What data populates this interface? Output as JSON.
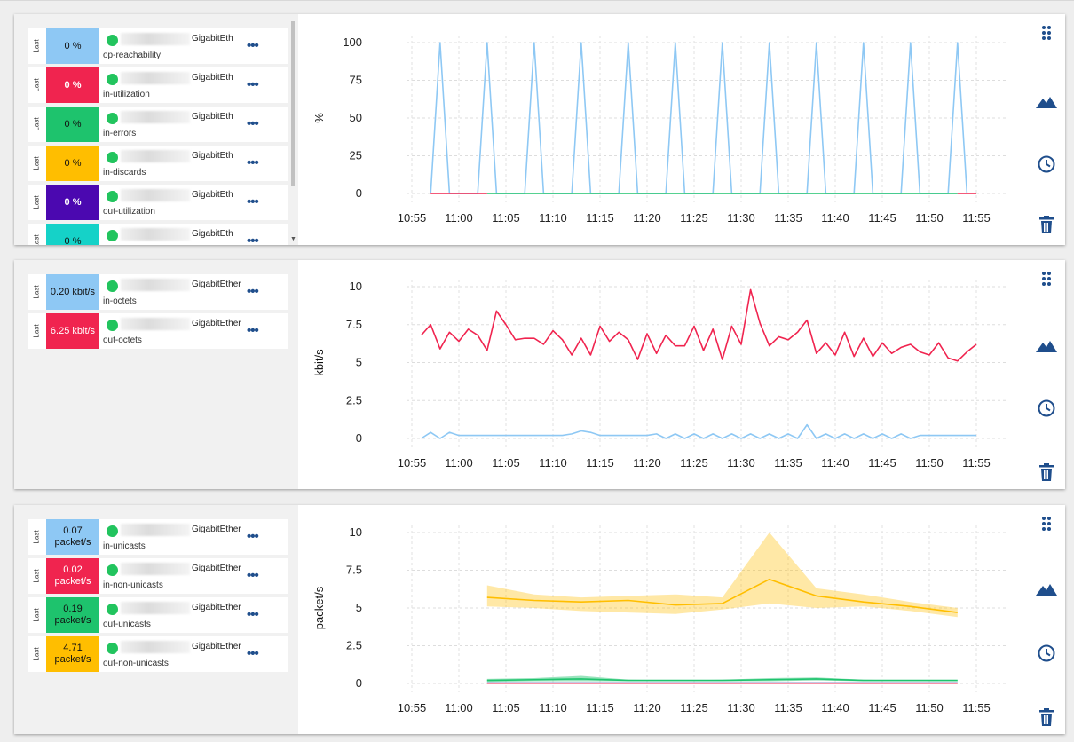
{
  "colors": {
    "blue": "#8ec8f4",
    "red": "#f0244f",
    "green": "#1ec36d",
    "yellow": "#ffbe00",
    "purple": "#4b08b0",
    "cyan": "#15d2c8",
    "icon": "#1f4e8c"
  },
  "panels": [
    {
      "last_label": "Last",
      "items": [
        {
          "value": "0 %",
          "color": "blue",
          "interface": "GigabitEth",
          "metric": "op-reachability"
        },
        {
          "value": "0 %",
          "color": "red",
          "interface": "GigabitEth",
          "metric": "in-utilization"
        },
        {
          "value": "0 %",
          "color": "green",
          "interface": "GigabitEth",
          "metric": "in-errors"
        },
        {
          "value": "0 %",
          "color": "yellow",
          "interface": "GigabitEth",
          "metric": "in-discards"
        },
        {
          "value": "0 %",
          "color": "purple",
          "interface": "GigabitEth",
          "metric": "out-utilization"
        },
        {
          "value": "0 %",
          "color": "cyan",
          "interface": "GigabitEth",
          "metric": ""
        }
      ],
      "chart_data": {
        "type": "line",
        "ylabel": "%",
        "ylim": [
          0,
          100
        ],
        "yticks": [
          "100",
          "75",
          "50",
          "25",
          "0"
        ],
        "xticks": [
          "10:55",
          "11:00",
          "11:05",
          "11:10",
          "11:15",
          "11:20",
          "11:25",
          "11:30",
          "11:35",
          "11:40",
          "11:45",
          "11:50",
          "11:55"
        ],
        "grid": true,
        "series": [
          {
            "color": "blue",
            "x": [
              "10:57",
              "10:58",
              "10:59",
              "11:02",
              "11:03",
              "11:04",
              "11:07",
              "11:08",
              "11:09",
              "11:12",
              "11:13",
              "11:14",
              "11:17",
              "11:18",
              "11:19",
              "11:22",
              "11:23",
              "11:24",
              "11:27",
              "11:28",
              "11:29",
              "11:32",
              "11:33",
              "11:34",
              "11:37",
              "11:38",
              "11:39",
              "11:42",
              "11:43",
              "11:44",
              "11:47",
              "11:48",
              "11:49",
              "11:52",
              "11:53",
              "11:54"
            ],
            "values": [
              0,
              100,
              0,
              0,
              100,
              0,
              0,
              100,
              0,
              0,
              100,
              0,
              0,
              100,
              0,
              0,
              100,
              0,
              0,
              100,
              0,
              0,
              100,
              0,
              0,
              100,
              0,
              0,
              100,
              0,
              0,
              100,
              0,
              0,
              100,
              0
            ]
          },
          {
            "color": "green",
            "x": [
              "11:03",
              "11:53"
            ],
            "values": [
              0,
              0
            ]
          },
          {
            "color": "red",
            "x": [
              "10:57",
              "11:03"
            ],
            "values": [
              0,
              0
            ]
          },
          {
            "color": "red",
            "x": [
              "11:53",
              "11:55"
            ],
            "values": [
              0,
              0
            ]
          }
        ]
      }
    },
    {
      "last_label": "Last",
      "items": [
        {
          "value": "0.20 kbit/s",
          "color": "blue",
          "interface": "GigabitEther",
          "metric": "in-octets"
        },
        {
          "value": "6.25 kbit/s",
          "color": "red",
          "interface": "GigabitEther",
          "metric": "out-octets"
        }
      ],
      "chart_data": {
        "type": "line",
        "ylabel": "kbit/s",
        "ylim": [
          0,
          10
        ],
        "yticks": [
          "10",
          "7.5",
          "5",
          "2.5",
          "0"
        ],
        "xticks": [
          "10:55",
          "11:00",
          "11:05",
          "11:10",
          "11:15",
          "11:20",
          "11:25",
          "11:30",
          "11:35",
          "11:40",
          "11:45",
          "11:50",
          "11:55"
        ],
        "grid": true,
        "x_start": "10:56",
        "x_step_min": 1,
        "series": [
          {
            "color": "red",
            "values": [
              6.8,
              7.5,
              5.9,
              7.0,
              6.4,
              7.2,
              6.8,
              5.8,
              8.4,
              7.5,
              6.5,
              6.6,
              6.6,
              6.2,
              7.1,
              6.5,
              5.5,
              6.6,
              5.5,
              7.4,
              6.4,
              7.0,
              6.5,
              5.2,
              6.9,
              5.6,
              6.8,
              6.1,
              6.1,
              7.4,
              5.8,
              7.2,
              5.2,
              7.4,
              6.2,
              9.8,
              7.6,
              6.1,
              6.7,
              6.5,
              7.0,
              7.8,
              5.6,
              6.3,
              5.5,
              7.0,
              5.4,
              6.6,
              5.4,
              6.3,
              5.6,
              6.0,
              6.2,
              5.7,
              5.5,
              6.3,
              5.3,
              5.1,
              5.7,
              6.2
            ]
          },
          {
            "color": "blue",
            "values": [
              0.0,
              0.4,
              0.0,
              0.4,
              0.2,
              0.2,
              0.2,
              0.2,
              0.2,
              0.2,
              0.2,
              0.2,
              0.2,
              0.2,
              0.2,
              0.2,
              0.3,
              0.5,
              0.4,
              0.2,
              0.2,
              0.2,
              0.2,
              0.2,
              0.2,
              0.3,
              0.0,
              0.3,
              0.0,
              0.3,
              0.0,
              0.3,
              0.0,
              0.3,
              0.0,
              0.3,
              0.0,
              0.3,
              0.0,
              0.3,
              0.0,
              0.9,
              0.0,
              0.3,
              0.0,
              0.3,
              0.0,
              0.3,
              0.0,
              0.3,
              0.0,
              0.3,
              0.0,
              0.2,
              0.2,
              0.2,
              0.2,
              0.2,
              0.2,
              0.2
            ]
          }
        ]
      }
    },
    {
      "last_label": "Last",
      "items": [
        {
          "value": "0.07 packet/s",
          "color": "blue",
          "interface": "GigabitEther",
          "metric": "in-unicasts"
        },
        {
          "value": "0.02 packet/s",
          "color": "red",
          "interface": "GigabitEther",
          "metric": "in-non-unicasts"
        },
        {
          "value": "0.19 packet/s",
          "color": "green",
          "interface": "GigabitEther",
          "metric": "out-unicasts"
        },
        {
          "value": "4.71 packet/s",
          "color": "yellow",
          "interface": "GigabitEther",
          "metric": "out-non-unicasts"
        }
      ],
      "chart_data": {
        "type": "area",
        "ylabel": "packet/s",
        "ylim": [
          0,
          10
        ],
        "yticks": [
          "10",
          "7.5",
          "5",
          "2.5",
          "0"
        ],
        "xticks": [
          "10:55",
          "11:00",
          "11:05",
          "11:10",
          "11:15",
          "11:20",
          "11:25",
          "11:30",
          "11:35",
          "11:40",
          "11:45",
          "11:50",
          "11:55"
        ],
        "grid": true,
        "series": [
          {
            "color": "yellow",
            "x": [
              "11:03",
              "11:08",
              "11:13",
              "11:18",
              "11:23",
              "11:28",
              "11:33",
              "11:38",
              "11:43",
              "11:48",
              "11:53"
            ],
            "values": [
              5.7,
              5.5,
              5.4,
              5.5,
              5.2,
              5.3,
              6.9,
              5.8,
              5.4,
              5.1,
              4.7
            ],
            "upper": [
              6.5,
              5.9,
              5.7,
              5.8,
              5.9,
              5.7,
              10.0,
              6.3,
              5.9,
              5.4,
              5.0
            ],
            "lower": [
              5.1,
              5.0,
              4.8,
              4.7,
              4.6,
              4.9,
              5.3,
              5.0,
              5.1,
              4.8,
              4.4
            ]
          },
          {
            "color": "green",
            "x": [
              "11:03",
              "11:08",
              "11:13",
              "11:18",
              "11:23",
              "11:28",
              "11:33",
              "11:38",
              "11:43",
              "11:48",
              "11:53"
            ],
            "values": [
              0.2,
              0.25,
              0.3,
              0.2,
              0.2,
              0.2,
              0.25,
              0.3,
              0.2,
              0.2,
              0.2
            ],
            "upper": [
              0.3,
              0.35,
              0.5,
              0.25,
              0.2,
              0.25,
              0.35,
              0.4,
              0.25,
              0.2,
              0.2
            ],
            "lower": [
              0.1,
              0.15,
              0.15,
              0.15,
              0.15,
              0.15,
              0.15,
              0.2,
              0.15,
              0.15,
              0.15
            ]
          },
          {
            "color": "blue",
            "x": [
              "11:03",
              "11:53"
            ],
            "values": [
              0.05,
              0.05
            ]
          },
          {
            "color": "red",
            "x": [
              "11:03",
              "11:53"
            ],
            "values": [
              0.02,
              0.02
            ]
          }
        ]
      }
    }
  ],
  "tools": [
    "drag-handle-icon",
    "mountain-chart-icon",
    "clock-icon",
    "trash-icon"
  ]
}
